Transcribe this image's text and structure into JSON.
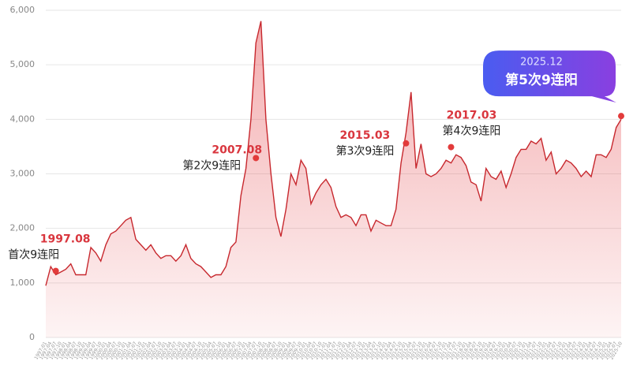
{
  "chart_data": {
    "type": "area",
    "categories": [
      "1997-01",
      "1997-04",
      "1997-07",
      "1997-10",
      "1998-01",
      "1998-04",
      "1998-07",
      "1998-10",
      "1999-01",
      "1999-04",
      "1999-07",
      "1999-10",
      "2000-01",
      "2000-04",
      "2000-07",
      "2000-10",
      "2001-01",
      "2001-04",
      "2001-07",
      "2001-10",
      "2002-01",
      "2002-04",
      "2002-07",
      "2002-10",
      "2003-01",
      "2003-04",
      "2003-07",
      "2003-10",
      "2004-01",
      "2004-04",
      "2004-07",
      "2004-10",
      "2005-01",
      "2005-04",
      "2005-07",
      "2005-10",
      "2006-01",
      "2006-04",
      "2006-07",
      "2006-10",
      "2007-01",
      "2007-04",
      "2007-07",
      "2007-10",
      "2008-01",
      "2008-04",
      "2008-07",
      "2008-10",
      "2009-01",
      "2009-04",
      "2009-07",
      "2009-10",
      "2010-01",
      "2010-04",
      "2010-07",
      "2010-10",
      "2011-01",
      "2011-04",
      "2011-07",
      "2011-10",
      "2012-01",
      "2012-04",
      "2012-07",
      "2012-10",
      "2013-01",
      "2013-04",
      "2013-07",
      "2013-10",
      "2014-01",
      "2014-04",
      "2014-07",
      "2014-10",
      "2015-01",
      "2015-04",
      "2015-07",
      "2015-10",
      "2016-01",
      "2016-04",
      "2016-07",
      "2016-10",
      "2017-01",
      "2017-04",
      "2017-07",
      "2017-10",
      "2018-01",
      "2018-04",
      "2018-07",
      "2018-10",
      "2019-01",
      "2019-04",
      "2019-07",
      "2019-10",
      "2020-01",
      "2020-04",
      "2020-07",
      "2020-10",
      "2021-01",
      "2021-04",
      "2021-07",
      "2021-10",
      "2022-01",
      "2022-04",
      "2022-07",
      "2022-10",
      "2023-01",
      "2023-04",
      "2023-07",
      "2023-10",
      "2024-01",
      "2024-04",
      "2024-07",
      "2024-10",
      "2025-01",
      "2025-04",
      "2025-07",
      "2025-10"
    ],
    "values": [
      950,
      1300,
      1150,
      1200,
      1250,
      1350,
      1150,
      1150,
      1150,
      1650,
      1550,
      1400,
      1700,
      1900,
      1950,
      2050,
      2150,
      2200,
      1800,
      1700,
      1600,
      1700,
      1550,
      1450,
      1500,
      1500,
      1400,
      1500,
      1700,
      1450,
      1350,
      1300,
      1200,
      1100,
      1150,
      1150,
      1300,
      1650,
      1750,
      2600,
      3100,
      4000,
      5400,
      5800,
      4000,
      3000,
      2200,
      1850,
      2350,
      3000,
      2800,
      3250,
      3100,
      2450,
      2650,
      2800,
      2900,
      2750,
      2400,
      2200,
      2250,
      2200,
      2050,
      2250,
      2250,
      1950,
      2150,
      2100,
      2050,
      2050,
      2350,
      3200,
      3750,
      4500,
      3100,
      3550,
      3000,
      2950,
      3000,
      3100,
      3250,
      3200,
      3350,
      3300,
      3150,
      2850,
      2800,
      2500,
      3100,
      2950,
      2900,
      3050,
      2750,
      3000,
      3300,
      3450,
      3450,
      3600,
      3550,
      3650,
      3250,
      3400,
      3000,
      3100,
      3250,
      3200,
      3100,
      2950,
      3050,
      2950,
      3350,
      3350,
      3300,
      3450,
      3850,
      4000
    ],
    "color": "#c7282e",
    "ylim": [
      0,
      6000
    ],
    "yticks": [
      0,
      {
        "value": 1000,
        "label": "1,000"
      },
      {
        "value": 2000,
        "label": "2,000"
      },
      {
        "value": 3000,
        "label": "3,000"
      },
      {
        "value": 4000,
        "label": "4,000"
      },
      {
        "value": 5000,
        "label": "5,000"
      },
      {
        "value": 6000,
        "label": "6,000"
      }
    ],
    "grid": true,
    "annotations": [
      {
        "date": "1997.08",
        "text": "首次9连阳",
        "category": "1997-07",
        "value": 1220
      },
      {
        "date": "2007.08",
        "text": "第2次9连阳",
        "category": "2007-07",
        "value": 3290
      },
      {
        "date": "2015.03",
        "text": "第3次9连阳",
        "category": "2015-01",
        "value": 3560
      },
      {
        "date": "2017.03",
        "text": "第4次9连阳",
        "category": "2017-04",
        "value": 3490
      },
      {
        "date": "2025.12",
        "text": "第5次9连阳",
        "category": "2025-10",
        "value": 4060
      }
    ]
  }
}
